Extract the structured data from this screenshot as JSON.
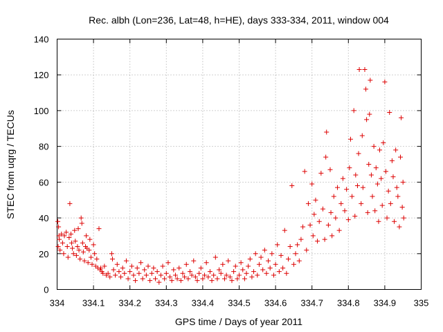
{
  "chart_data": {
    "type": "scatter",
    "title": "Rec. albh (Lon=236, Lat=48, h=HE), days 333-334, 2011, window 004",
    "xlabel": "GPS time / Days of year 2011",
    "ylabel": "STEC from uqrg / TECUs",
    "xlim": [
      334,
      335
    ],
    "ylim": [
      0,
      140
    ],
    "xticks": [
      334,
      334.1,
      334.2,
      334.3,
      334.4,
      334.5,
      334.6,
      334.7,
      334.8,
      334.9,
      335
    ],
    "xtick_labels": [
      "334",
      "334.1",
      "334.2",
      "334.3",
      "334.4",
      "334.5",
      "334.6",
      "334.7",
      "334.8",
      "334.9",
      "335"
    ],
    "yticks": [
      0,
      20,
      40,
      60,
      80,
      100,
      120,
      140
    ],
    "ytick_labels": [
      "0",
      "20",
      "40",
      "60",
      "80",
      "100",
      "120",
      "140"
    ],
    "grid": true,
    "marker": "+",
    "color": "#dd0000",
    "series": [
      {
        "points": [
          [
            334.002,
            38
          ],
          [
            334.004,
            35
          ],
          [
            334.005,
            30
          ],
          [
            334.003,
            24
          ],
          [
            334.006,
            28
          ],
          [
            334.008,
            22
          ],
          [
            334.012,
            31
          ],
          [
            334.015,
            26
          ],
          [
            334.018,
            20
          ],
          [
            334.02,
            30
          ],
          [
            334.025,
            32
          ],
          [
            334.028,
            24
          ],
          [
            334.03,
            18
          ],
          [
            334.033,
            29
          ],
          [
            334.035,
            48
          ],
          [
            334.038,
            31
          ],
          [
            334.04,
            26
          ],
          [
            334.042,
            23
          ],
          [
            334.045,
            20
          ],
          [
            334.048,
            33
          ],
          [
            334.05,
            27
          ],
          [
            334.053,
            19
          ],
          [
            334.056,
            24
          ],
          [
            334.058,
            34
          ],
          [
            334.06,
            22
          ],
          [
            334.063,
            17
          ],
          [
            334.066,
            40
          ],
          [
            334.068,
            37
          ],
          [
            334.07,
            26
          ],
          [
            334.072,
            21
          ],
          [
            334.075,
            16
          ],
          [
            334.078,
            24
          ],
          [
            334.08,
            30
          ],
          [
            334.082,
            23
          ],
          [
            334.085,
            15
          ],
          [
            334.088,
            22
          ],
          [
            334.09,
            28
          ],
          [
            334.093,
            18
          ],
          [
            334.096,
            14
          ],
          [
            334.1,
            25
          ],
          [
            334.103,
            20
          ],
          [
            334.106,
            13
          ],
          [
            334.109,
            17
          ],
          [
            334.112,
            12
          ],
          [
            334.115,
            34
          ],
          [
            334.118,
            11
          ],
          [
            334.12,
            12
          ],
          [
            334.123,
            10
          ],
          [
            334.126,
            9
          ],
          [
            334.13,
            13
          ],
          [
            334.135,
            8
          ],
          [
            334.14,
            9
          ],
          [
            334.145,
            7
          ],
          [
            334.15,
            20
          ],
          [
            334.152,
            17
          ],
          [
            334.155,
            11
          ],
          [
            334.16,
            8
          ],
          [
            334.165,
            14
          ],
          [
            334.17,
            10
          ],
          [
            334.175,
            7
          ],
          [
            334.18,
            12
          ],
          [
            334.185,
            9
          ],
          [
            334.19,
            16
          ],
          [
            334.195,
            6
          ],
          [
            334.2,
            10
          ],
          [
            334.205,
            13
          ],
          [
            334.21,
            8
          ],
          [
            334.215,
            5
          ],
          [
            334.22,
            12
          ],
          [
            334.225,
            9
          ],
          [
            334.23,
            15
          ],
          [
            334.235,
            6
          ],
          [
            334.24,
            11
          ],
          [
            334.245,
            8
          ],
          [
            334.25,
            13
          ],
          [
            334.255,
            5
          ],
          [
            334.26,
            9
          ],
          [
            334.265,
            12
          ],
          [
            334.27,
            6
          ],
          [
            334.275,
            10
          ],
          [
            334.28,
            4
          ],
          [
            334.285,
            8
          ],
          [
            334.29,
            13
          ],
          [
            334.295,
            6
          ],
          [
            334.3,
            9
          ],
          [
            334.305,
            15
          ],
          [
            334.31,
            7
          ],
          [
            334.315,
            5
          ],
          [
            334.32,
            11
          ],
          [
            334.325,
            8
          ],
          [
            334.33,
            6
          ],
          [
            334.335,
            12
          ],
          [
            334.34,
            5
          ],
          [
            334.345,
            9
          ],
          [
            334.35,
            7
          ],
          [
            334.355,
            14
          ],
          [
            334.36,
            6
          ],
          [
            334.365,
            10
          ],
          [
            334.37,
            8
          ],
          [
            334.375,
            16
          ],
          [
            334.38,
            7
          ],
          [
            334.385,
            5
          ],
          [
            334.39,
            9
          ],
          [
            334.395,
            12
          ],
          [
            334.4,
            6
          ],
          [
            334.405,
            8
          ],
          [
            334.41,
            15
          ],
          [
            334.415,
            7
          ],
          [
            334.42,
            10
          ],
          [
            334.425,
            5
          ],
          [
            334.43,
            8
          ],
          [
            334.435,
            18
          ],
          [
            334.44,
            6
          ],
          [
            334.445,
            11
          ],
          [
            334.45,
            9
          ],
          [
            334.455,
            14
          ],
          [
            334.46,
            6
          ],
          [
            334.465,
            8
          ],
          [
            334.47,
            16
          ],
          [
            334.475,
            7
          ],
          [
            334.48,
            5
          ],
          [
            334.485,
            10
          ],
          [
            334.49,
            13
          ],
          [
            334.495,
            6
          ],
          [
            334.5,
            8
          ],
          [
            334.505,
            15
          ],
          [
            334.51,
            11
          ],
          [
            334.515,
            6
          ],
          [
            334.52,
            9
          ],
          [
            334.525,
            13
          ],
          [
            334.53,
            17
          ],
          [
            334.535,
            7
          ],
          [
            334.54,
            10
          ],
          [
            334.545,
            20
          ],
          [
            334.55,
            8
          ],
          [
            334.555,
            14
          ],
          [
            334.56,
            18
          ],
          [
            334.565,
            11
          ],
          [
            334.57,
            22
          ],
          [
            334.575,
            9
          ],
          [
            334.58,
            16
          ],
          [
            334.585,
            12
          ],
          [
            334.59,
            20
          ],
          [
            334.595,
            8
          ],
          [
            334.6,
            14
          ],
          [
            334.605,
            25
          ],
          [
            334.61,
            10
          ],
          [
            334.615,
            19
          ],
          [
            334.62,
            12
          ],
          [
            334.625,
            33
          ],
          [
            334.63,
            9
          ],
          [
            334.635,
            17
          ],
          [
            334.64,
            24
          ],
          [
            334.645,
            58
          ],
          [
            334.65,
            14
          ],
          [
            334.655,
            20
          ],
          [
            334.66,
            25
          ],
          [
            334.665,
            16
          ],
          [
            334.67,
            28
          ],
          [
            334.675,
            35
          ],
          [
            334.68,
            66
          ],
          [
            334.685,
            22
          ],
          [
            334.69,
            48
          ],
          [
            334.695,
            36
          ],
          [
            334.7,
            59
          ],
          [
            334.703,
            30
          ],
          [
            334.706,
            42
          ],
          [
            334.71,
            50
          ],
          [
            334.715,
            27
          ],
          [
            334.72,
            38
          ],
          [
            334.725,
            65
          ],
          [
            334.73,
            45
          ],
          [
            334.735,
            28
          ],
          [
            334.738,
            74
          ],
          [
            334.74,
            88
          ],
          [
            334.745,
            36
          ],
          [
            334.75,
            67
          ],
          [
            334.752,
            43
          ],
          [
            334.755,
            30
          ],
          [
            334.76,
            52
          ],
          [
            334.765,
            40
          ],
          [
            334.77,
            57
          ],
          [
            334.775,
            33
          ],
          [
            334.78,
            48
          ],
          [
            334.785,
            62
          ],
          [
            334.79,
            44
          ],
          [
            334.795,
            56
          ],
          [
            334.8,
            39
          ],
          [
            334.803,
            68
          ],
          [
            334.806,
            84
          ],
          [
            334.81,
            52
          ],
          [
            334.815,
            100
          ],
          [
            334.818,
            41
          ],
          [
            334.82,
            64
          ],
          [
            334.825,
            58
          ],
          [
            334.828,
            76
          ],
          [
            334.83,
            123
          ],
          [
            334.835,
            48
          ],
          [
            334.838,
            86
          ],
          [
            334.84,
            57
          ],
          [
            334.845,
            123
          ],
          [
            334.848,
            112
          ],
          [
            334.85,
            95
          ],
          [
            334.853,
            43
          ],
          [
            334.856,
            70
          ],
          [
            334.858,
            98
          ],
          [
            334.86,
            117
          ],
          [
            334.863,
            64
          ],
          [
            334.866,
            52
          ],
          [
            334.87,
            80
          ],
          [
            334.873,
            44
          ],
          [
            334.876,
            68
          ],
          [
            334.88,
            59
          ],
          [
            334.883,
            38
          ],
          [
            334.886,
            78
          ],
          [
            334.89,
            62
          ],
          [
            334.893,
            47
          ],
          [
            334.896,
            82
          ],
          [
            334.9,
            116
          ],
          [
            334.903,
            66
          ],
          [
            334.906,
            40
          ],
          [
            334.91,
            55
          ],
          [
            334.913,
            99
          ],
          [
            334.916,
            48
          ],
          [
            334.92,
            72
          ],
          [
            334.923,
            63
          ],
          [
            334.926,
            38
          ],
          [
            334.93,
            78
          ],
          [
            334.933,
            57
          ],
          [
            334.936,
            52
          ],
          [
            334.94,
            35
          ],
          [
            334.943,
            74
          ],
          [
            334.945,
            96
          ],
          [
            334.948,
            46
          ],
          [
            334.95,
            60
          ],
          [
            334.952,
            40
          ]
        ]
      }
    ]
  }
}
